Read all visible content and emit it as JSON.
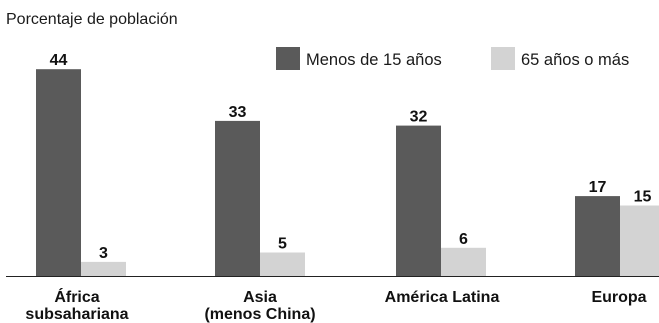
{
  "chart_data": {
    "type": "bar",
    "ylabel": "Porcentaje de población",
    "categories": [
      [
        "África",
        "subsahariana"
      ],
      [
        "Asia",
        "(menos China)"
      ],
      [
        "América Latina"
      ],
      [
        "Europa"
      ]
    ],
    "series": [
      {
        "name": "Menos de 15 años",
        "color": "#5a5a5a",
        "values": [
          44,
          33,
          32,
          17
        ]
      },
      {
        "name": "65 años o más",
        "color": "#d3d3d3",
        "values": [
          3,
          5,
          6,
          15
        ]
      }
    ],
    "ylim": [
      0,
      44
    ],
    "grid": false,
    "legend_position": "top-right"
  }
}
